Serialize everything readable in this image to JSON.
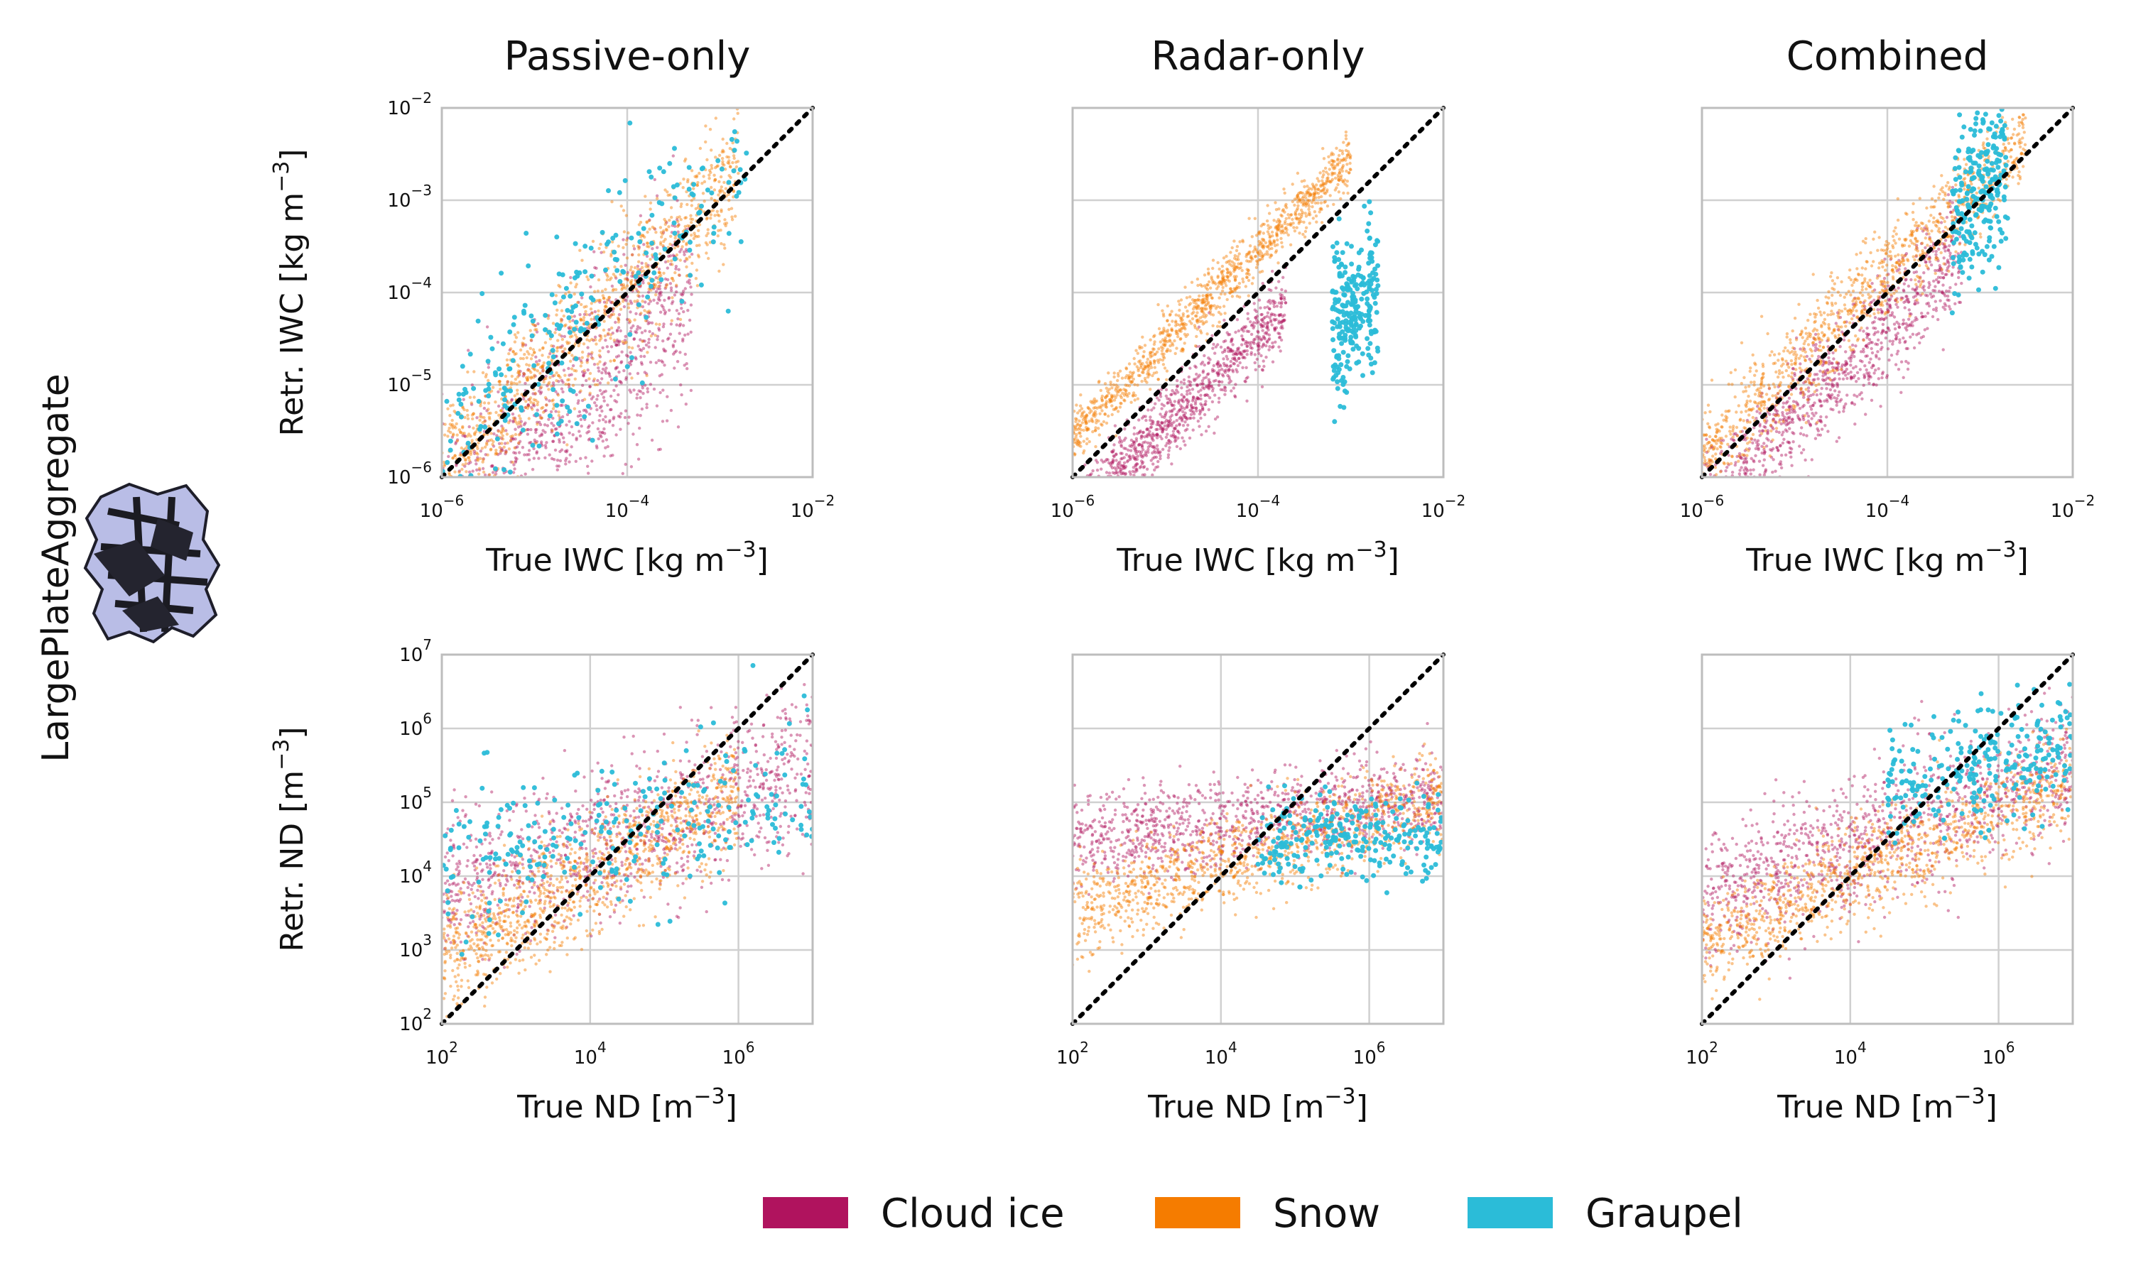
{
  "row_label": "LargePlateAggregate",
  "colors": {
    "cloud_ice": "#b0135e",
    "snow": "#f57c00",
    "graupel": "#2bbcd8"
  },
  "legend": {
    "items": [
      {
        "label": "Cloud ice",
        "color": "#b0135e"
      },
      {
        "label": "Snow",
        "color": "#f57c00"
      },
      {
        "label": "Graupel",
        "color": "#2bbcd8"
      }
    ]
  },
  "chart_data": [
    {
      "type": "scatter",
      "row": 0,
      "col": 0,
      "title": "Passive-only",
      "xlabel_base": "True IWC [kg m",
      "xlabel_sup": "−3",
      "xlabel_end": "]",
      "ylabel_base": "Retr. IWC [kg  m",
      "ylabel_sup": "−3",
      "ylabel_end": "]",
      "scale": "log",
      "xlim_exp": [
        -6,
        -2
      ],
      "ylim_exp": [
        -6,
        -2
      ],
      "xticks": [
        -6,
        -4,
        -2
      ],
      "yticks": [
        -6,
        -5,
        -4,
        -3,
        -2
      ],
      "tick_base": "10",
      "show_y_ticklabels": true,
      "diagonal": "1:1",
      "grid": true,
      "series": [
        {
          "key": "cloud_ice",
          "summary": {
            "x_range": [
              -6,
              -3.3
            ],
            "y_offset": -0.6,
            "spread": 0.55
          }
        },
        {
          "key": "snow",
          "summary": {
            "x_range": [
              -6,
              -2.8
            ],
            "y_offset": 0.05,
            "spread": 0.35
          }
        },
        {
          "key": "graupel",
          "summary": {
            "x_range": [
              -6,
              -2.7
            ],
            "y_offset": 0.3,
            "spread": 0.6
          }
        }
      ]
    },
    {
      "type": "scatter",
      "row": 0,
      "col": 1,
      "title": "Radar-only",
      "xlabel_base": "True IWC [kg m",
      "xlabel_sup": "−3",
      "xlabel_end": "]",
      "ylabel_base": "",
      "ylabel_sup": "",
      "ylabel_end": "",
      "scale": "log",
      "xlim_exp": [
        -6,
        -2
      ],
      "ylim_exp": [
        -6,
        -2
      ],
      "xticks": [
        -6,
        -4,
        -2
      ],
      "yticks": [
        -6,
        -5,
        -4,
        -3,
        -2
      ],
      "tick_base": "10",
      "show_y_ticklabels": false,
      "diagonal": "1:1",
      "grid": true,
      "series": [
        {
          "key": "cloud_ice",
          "summary": {
            "x_range": [
              -6,
              -3.7
            ],
            "y_offset": -0.45,
            "spread": 0.2
          }
        },
        {
          "key": "snow",
          "summary": {
            "x_range": [
              -6,
              -3.0
            ],
            "y_offset": 0.45,
            "spread": 0.15
          }
        },
        {
          "key": "graupel",
          "summary": {
            "x_range": [
              -3.2,
              -2.7
            ],
            "y_offset": -1.2,
            "spread": 0.4
          }
        }
      ]
    },
    {
      "type": "scatter",
      "row": 0,
      "col": 2,
      "title": "Combined",
      "xlabel_base": "True IWC [kg m",
      "xlabel_sup": "−3",
      "xlabel_end": "]",
      "ylabel_base": "",
      "ylabel_sup": "",
      "ylabel_end": "",
      "scale": "log",
      "xlim_exp": [
        -6,
        -2
      ],
      "ylim_exp": [
        -6,
        -2
      ],
      "xticks": [
        -6,
        -4,
        -2
      ],
      "yticks": [
        -6,
        -5,
        -4,
        -3,
        -2
      ],
      "tick_base": "10",
      "show_y_ticklabels": false,
      "diagonal": "1:1",
      "grid": true,
      "series": [
        {
          "key": "cloud_ice",
          "summary": {
            "x_range": [
              -6,
              -3.2
            ],
            "y_offset": -0.35,
            "spread": 0.3
          }
        },
        {
          "key": "snow",
          "summary": {
            "x_range": [
              -6,
              -2.5
            ],
            "y_offset": 0.2,
            "spread": 0.25
          }
        },
        {
          "key": "graupel",
          "summary": {
            "x_range": [
              -3.3,
              -2.7
            ],
            "y_offset": 0.1,
            "spread": 0.45
          }
        }
      ]
    },
    {
      "type": "scatter",
      "row": 1,
      "col": 0,
      "title": "",
      "xlabel_base": "True ND [m",
      "xlabel_sup": "−3",
      "xlabel_end": "]",
      "ylabel_base": "Retr. ND [m",
      "ylabel_sup": "−3",
      "ylabel_end": "]",
      "scale": "log",
      "xlim_exp": [
        2,
        7
      ],
      "ylim_exp": [
        2,
        7
      ],
      "xticks": [
        2,
        4,
        6
      ],
      "yticks": [
        2,
        3,
        4,
        5,
        6,
        7
      ],
      "tick_base": "10",
      "show_y_ticklabels": true,
      "diagonal": "1:1",
      "grid": true,
      "series": [
        {
          "key": "cloud_ice",
          "summary": {
            "x_range": [
              2,
              7
            ],
            "y_mode": "flatten",
            "y_level": 4.6,
            "slope": 0.35,
            "spread": 0.5
          }
        },
        {
          "key": "snow",
          "summary": {
            "x_range": [
              2,
              6
            ],
            "y_mode": "flatten",
            "y_level": 4.3,
            "slope": 0.55,
            "spread": 0.4
          }
        },
        {
          "key": "graupel",
          "summary": {
            "x_range": [
              2,
              7
            ],
            "y_mode": "flatten",
            "y_level": 4.6,
            "slope": 0.2,
            "spread": 0.5
          }
        }
      ]
    },
    {
      "type": "scatter",
      "row": 1,
      "col": 1,
      "title": "",
      "xlabel_base": "True ND [m",
      "xlabel_sup": "−3",
      "xlabel_end": "]",
      "ylabel_base": "",
      "ylabel_sup": "",
      "ylabel_end": "",
      "scale": "log",
      "xlim_exp": [
        2,
        7
      ],
      "ylim_exp": [
        2,
        7
      ],
      "xticks": [
        2,
        4,
        6
      ],
      "yticks": [
        2,
        3,
        4,
        5,
        6,
        7
      ],
      "tick_base": "10",
      "show_y_ticklabels": false,
      "diagonal": "1:1",
      "grid": true,
      "series": [
        {
          "key": "cloud_ice",
          "summary": {
            "x_range": [
              2,
              7
            ],
            "y_mode": "flatten",
            "y_level": 4.8,
            "slope": 0.12,
            "spread": 0.3
          }
        },
        {
          "key": "snow",
          "summary": {
            "x_range": [
              2,
              7
            ],
            "y_mode": "flatten",
            "y_level": 4.3,
            "slope": 0.3,
            "spread": 0.3
          }
        },
        {
          "key": "graupel",
          "summary": {
            "x_range": [
              4.5,
              7
            ],
            "y_mode": "flatten",
            "y_level": 4.5,
            "slope": 0.0,
            "spread": 0.3
          }
        }
      ]
    },
    {
      "type": "scatter",
      "row": 1,
      "col": 2,
      "title": "",
      "xlabel_base": "True ND [m",
      "xlabel_sup": "−3",
      "xlabel_end": "]",
      "ylabel_base": "",
      "ylabel_sup": "",
      "ylabel_end": "",
      "scale": "log",
      "xlim_exp": [
        2,
        7
      ],
      "ylim_exp": [
        2,
        7
      ],
      "xticks": [
        2,
        4,
        6
      ],
      "yticks": [
        2,
        3,
        4,
        5,
        6,
        7
      ],
      "tick_base": "10",
      "show_y_ticklabels": false,
      "diagonal": "1:1",
      "grid": true,
      "series": [
        {
          "key": "cloud_ice",
          "summary": {
            "x_range": [
              2,
              7
            ],
            "y_mode": "flatten",
            "y_level": 4.6,
            "slope": 0.35,
            "spread": 0.45
          }
        },
        {
          "key": "snow",
          "summary": {
            "x_range": [
              2,
              7
            ],
            "y_mode": "flatten",
            "y_level": 4.2,
            "slope": 0.45,
            "spread": 0.35
          }
        },
        {
          "key": "graupel",
          "summary": {
            "x_range": [
              4.5,
              7
            ],
            "y_mode": "flatten",
            "y_level": 5.2,
            "slope": 0.2,
            "spread": 0.4
          }
        }
      ]
    }
  ]
}
